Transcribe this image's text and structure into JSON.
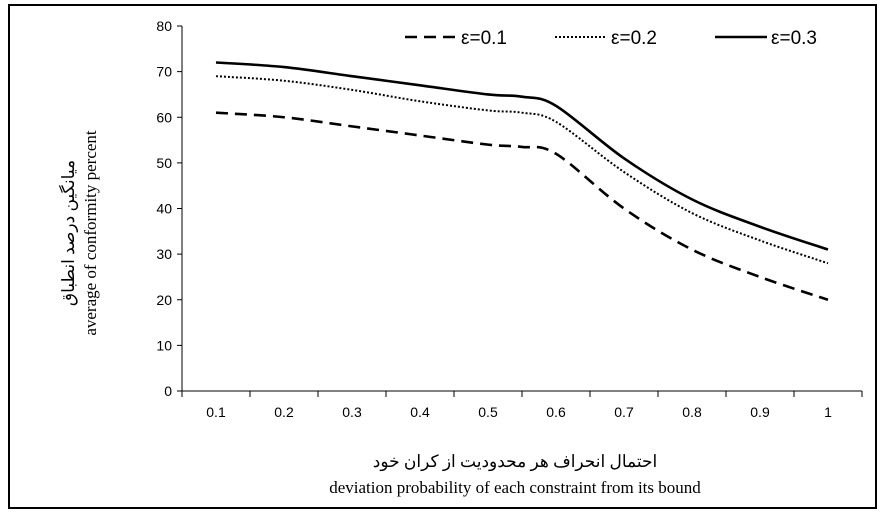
{
  "chart_data": {
    "type": "line",
    "x": [
      0.1,
      0.2,
      0.3,
      0.4,
      0.5,
      0.55,
      0.6,
      0.7,
      0.8,
      0.9,
      1
    ],
    "categories": [
      "0.1",
      "0.2",
      "0.3",
      "0.4",
      "0.5",
      "0.6",
      "0.7",
      "0.8",
      "0.9",
      "1"
    ],
    "series": [
      {
        "name": "ε=0.1",
        "style": "dashed",
        "values": [
          61,
          60,
          58,
          56,
          54,
          53.5,
          52,
          40,
          31,
          25,
          20
        ]
      },
      {
        "name": "ε=0.2",
        "style": "dotted",
        "values": [
          69,
          68,
          66,
          63.5,
          61.5,
          61,
          59,
          48,
          39,
          33,
          28
        ]
      },
      {
        "name": "ε=0.3",
        "style": "solid",
        "values": [
          72,
          71,
          69,
          67,
          65,
          64.5,
          62.5,
          51,
          42,
          36,
          31
        ]
      }
    ],
    "yticks": [
      0,
      10,
      20,
      30,
      40,
      50,
      60,
      70,
      80
    ],
    "ylim": [
      0,
      80
    ],
    "ylabel_fa": "میانگین درصد انطباق",
    "ylabel_en": "average of conformity percent",
    "xlabel_fa": "احتمال انحراف هر محدودیت از کران خود",
    "xlabel_en": "deviation probability  of each constraint from its bound",
    "legend_position": "top",
    "grid": false,
    "line_color": "#000000"
  }
}
